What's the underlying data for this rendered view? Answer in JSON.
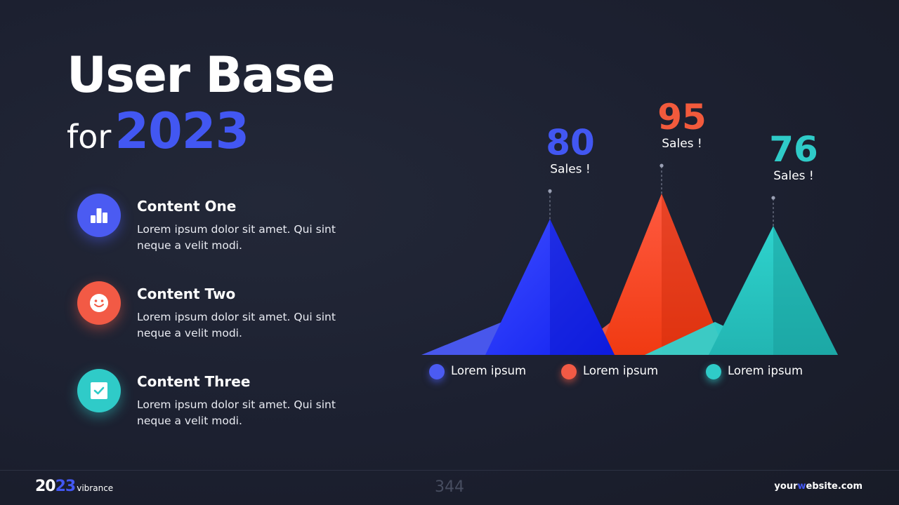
{
  "header": {
    "title_line1": "User Base",
    "title_for": "for",
    "title_year": "2023"
  },
  "items": [
    {
      "heading": "Content One",
      "body": "Lorem ipsum dolor sit amet. Qui sint neque a velit modi.",
      "icon": "bar-chart-icon",
      "color": "#4b5bf2"
    },
    {
      "heading": "Content Two",
      "body": "Lorem ipsum dolor sit amet. Qui sint neque a velit modi.",
      "icon": "smiley-face-icon",
      "color": "#f25a45"
    },
    {
      "heading": "Content Three",
      "body": "Lorem ipsum dolor sit amet. Qui sint neque a velit modi.",
      "icon": "checkbox-icon",
      "color": "#2fcbc8"
    }
  ],
  "chart_data": {
    "type": "area",
    "series": [
      {
        "value": 80,
        "value_label": "80",
        "caption": "Sales !",
        "legend": "Lorem ipsum",
        "color": "#4257f2"
      },
      {
        "value": 95,
        "value_label": "95",
        "caption": "Sales !",
        "legend": "Lorem ipsum",
        "color": "#f25a3c"
      },
      {
        "value": 76,
        "value_label": "76",
        "caption": "Sales !",
        "legend": "Lorem ipsum",
        "color": "#2fcbc8"
      }
    ],
    "grid": false,
    "legend_position": "bottom"
  },
  "footer": {
    "logo_part1": "20",
    "logo_part2": "23",
    "logo_word": "vibrance",
    "page_number": "344",
    "website_prefix": "your",
    "website_highlight": "w",
    "website_suffix": "ebsite.com"
  }
}
